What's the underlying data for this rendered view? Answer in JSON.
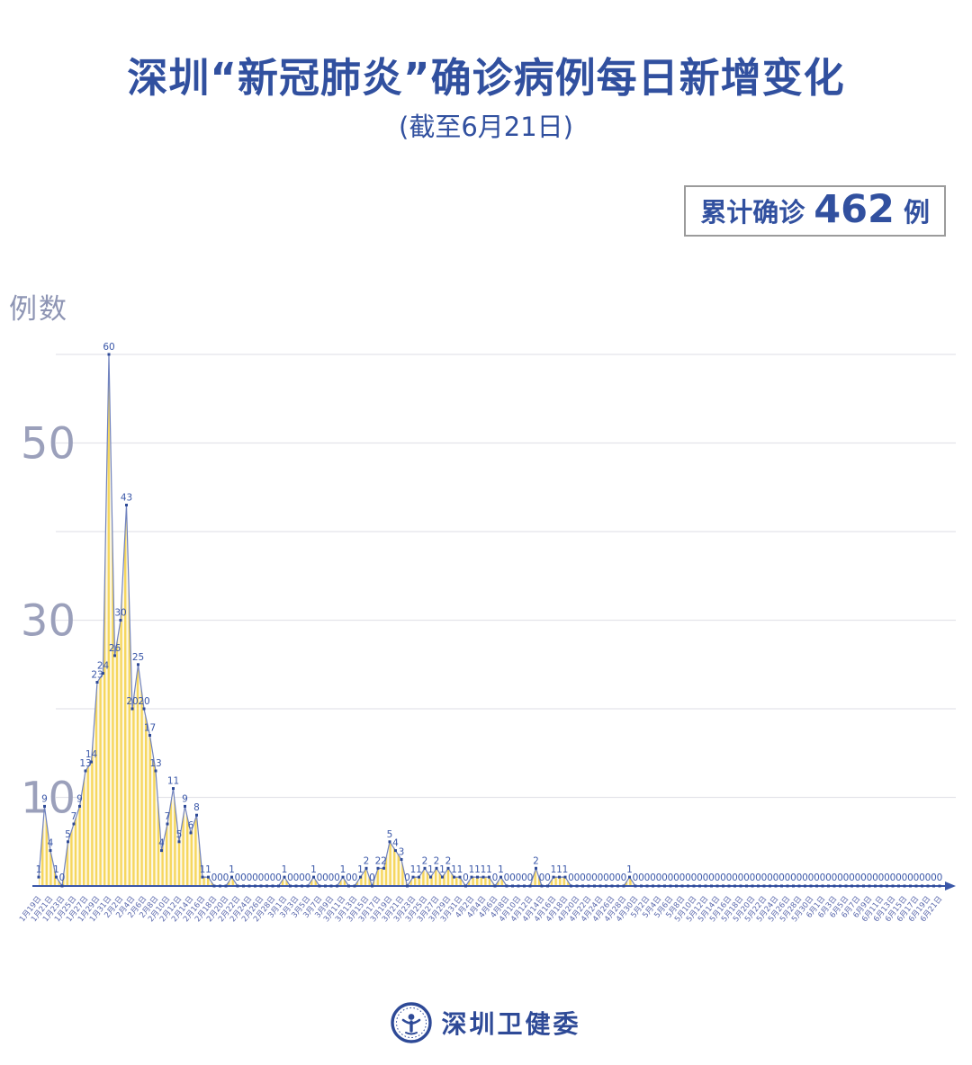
{
  "header": {
    "title": "深圳“新冠肺炎”确诊病例每日新增变化",
    "subtitle": "(截至6月21日)"
  },
  "badge": {
    "label": "累计确诊",
    "value": "462",
    "unit": "例"
  },
  "footer": {
    "org": "深圳卫健委",
    "logo_icon": "shenzhen-health-commission-emblem"
  },
  "chart_data": {
    "type": "area",
    "title": "深圳“新冠肺炎”确诊病例每日新增变化",
    "subtitle": "(截至6月21日)",
    "ylabel": "例数",
    "ylim": [
      0,
      62
    ],
    "gridlines": [
      10,
      20,
      30,
      40,
      50,
      60
    ],
    "ytick_labels": [
      50,
      30,
      10
    ],
    "cumulative_total": 462,
    "x_axis": {
      "months": [
        {
          "month": "1月",
          "from": 19,
          "to": 31
        },
        {
          "month": "2月",
          "from": 1,
          "to": 29
        },
        {
          "month": "3月",
          "from": 1,
          "to": 31
        },
        {
          "month": "4月",
          "from": 1,
          "to": 30
        },
        {
          "month": "5月",
          "from": 1,
          "to": 31
        },
        {
          "month": "6月",
          "from": 1,
          "to": 21
        }
      ],
      "day_suffix": "日",
      "tick_every": 2,
      "first_tick": "1月19日",
      "last_tick": "6月21日"
    },
    "values": [
      1,
      9,
      4,
      1,
      0,
      5,
      7,
      9,
      13,
      14,
      23,
      24,
      60,
      26,
      30,
      43,
      20,
      25,
      20,
      17,
      13,
      4,
      7,
      11,
      5,
      9,
      6,
      8,
      1,
      1,
      0,
      0,
      0,
      1,
      0,
      0,
      0,
      0,
      0,
      0,
      0,
      0,
      1,
      0,
      0,
      0,
      0,
      1,
      0,
      0,
      0,
      0,
      1,
      0,
      0,
      1,
      2,
      0,
      2,
      2,
      5,
      4,
      3,
      0,
      1,
      1,
      2,
      1,
      2,
      1,
      2,
      1,
      1,
      0,
      1,
      1,
      1,
      1,
      0,
      1,
      0,
      0,
      0,
      0,
      0,
      2,
      0,
      0,
      1,
      1,
      1,
      0,
      0,
      0,
      0,
      0,
      0,
      0,
      0,
      0,
      0,
      1,
      0,
      0,
      0,
      0,
      0,
      0,
      0,
      0,
      0,
      0,
      0,
      0,
      0,
      0,
      0,
      0,
      0,
      0,
      0,
      0,
      0,
      0,
      0,
      0,
      0,
      0,
      0,
      0,
      0,
      0,
      0,
      0,
      0,
      0,
      0,
      0,
      0,
      0,
      0,
      0,
      0,
      0,
      0,
      0,
      0,
      0,
      0,
      0,
      0,
      0,
      0,
      0,
      0
    ],
    "colors": {
      "area_stripe": "#F6D75E",
      "area_stripe_light": "#FDF8E6",
      "line": "#7183BF",
      "marker": "#2E4A97",
      "value_label": "#3A57A8",
      "axis": "#3A57A8",
      "grid": "#E4E4EA",
      "ytick": "#9BA0BB",
      "xtick": "#5A68AC",
      "title_blue": "#31509F"
    }
  }
}
